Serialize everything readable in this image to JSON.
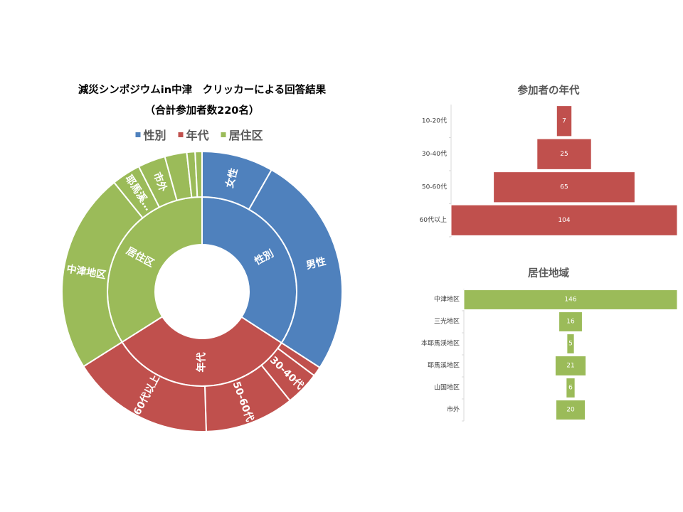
{
  "colors": {
    "gender": "#4F81BD",
    "age": "#C0504D",
    "area": "#9BBB59",
    "text": "#404040",
    "axis": "#D9D9D9"
  },
  "chart_data": [
    {
      "type": "sunburst",
      "title": "減災シンポジウムin中津　クリッカーによる回答結果",
      "subtitle": "（合計参加者数220名）",
      "legend": [
        "性別",
        "年代",
        "居住区"
      ],
      "legend_position": "top",
      "groups": [
        {
          "name": "性別",
          "label": "性別",
          "color": "#4F81BD",
          "children": [
            {
              "name": "女性",
              "label": "女性",
              "value": 52
            },
            {
              "name": "男性",
              "label": "男性",
              "value": 163
            }
          ]
        },
        {
          "name": "年代",
          "label": "年代",
          "color": "#C0504D",
          "children": [
            {
              "name": "10-20代",
              "label": "",
              "value": 7
            },
            {
              "name": "30-40代",
              "label": "30-40代",
              "value": 25
            },
            {
              "name": "50-60代",
              "label": "50-60代",
              "value": 65
            },
            {
              "name": "60代以上",
              "label": "60代以上",
              "value": 104
            }
          ]
        },
        {
          "name": "居住区",
          "label": "居住区",
          "color": "#9BBB59",
          "children": [
            {
              "name": "中津地区",
              "label": "中津地区",
              "value": 146
            },
            {
              "name": "耶馬溪地区",
              "label": "耶馬溪…",
              "value": 21
            },
            {
              "name": "市外",
              "label": "市外",
              "value": 20
            },
            {
              "name": "三光地区",
              "label": "",
              "value": 16
            },
            {
              "name": "山国地区",
              "label": "",
              "value": 6
            },
            {
              "name": "本耶馬渓地区",
              "label": "",
              "value": 5
            }
          ]
        }
      ]
    },
    {
      "type": "bar",
      "orientation": "horizontal",
      "style": "funnel",
      "title": "参加者の年代",
      "categories": [
        "10-20代",
        "30-40代",
        "50-60代",
        "60代以上"
      ],
      "values": [
        7,
        25,
        65,
        104
      ],
      "color": "#C0504D"
    },
    {
      "type": "bar",
      "orientation": "horizontal",
      "style": "funnel",
      "title": "居住地域",
      "categories": [
        "中津地区",
        "三光地区",
        "本耶馬渓地区",
        "耶馬溪地区",
        "山国地区",
        "市外"
      ],
      "values": [
        146,
        16,
        5,
        21,
        6,
        20
      ],
      "color": "#9BBB59"
    }
  ]
}
